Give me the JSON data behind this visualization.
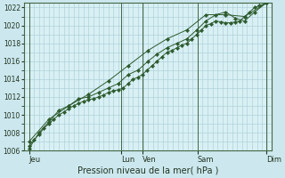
{
  "title": "",
  "xlabel": "Pression niveau de la mer( hPa )",
  "ylabel": "",
  "background_color": "#cce8ee",
  "plot_bg_color": "#d8f0f4",
  "grid_color": "#a8ccd4",
  "line_color": "#2d5a2d",
  "marker_color": "#2d5a2d",
  "ylim": [
    1006,
    1022.5
  ],
  "ytick_min": 1006,
  "ytick_max": 1022,
  "ytick_step": 2,
  "xlim_max": 300,
  "day_labels": [
    "Jeu",
    "Lun",
    "Ven",
    "Sam",
    "Dim"
  ],
  "day_positions": [
    6,
    118,
    143,
    210,
    293
  ],
  "series1_x": [
    6,
    12,
    18,
    24,
    30,
    36,
    42,
    48,
    54,
    60,
    66,
    72,
    78,
    84,
    90,
    96,
    102,
    108,
    114,
    120,
    126,
    132,
    138,
    143,
    149,
    155,
    161,
    167,
    173,
    179,
    185,
    191,
    197,
    203,
    209,
    215,
    220,
    226,
    232,
    238,
    244,
    250,
    256,
    261,
    267,
    273,
    279,
    285,
    293
  ],
  "series1_y": [
    1006.5,
    1007.2,
    1007.8,
    1008.5,
    1009.0,
    1009.5,
    1010.0,
    1010.3,
    1010.7,
    1011.0,
    1011.3,
    1011.5,
    1011.7,
    1011.8,
    1012.0,
    1012.2,
    1012.5,
    1012.7,
    1012.8,
    1013.0,
    1013.5,
    1014.0,
    1014.2,
    1014.5,
    1015.0,
    1015.5,
    1016.0,
    1016.5,
    1017.0,
    1017.2,
    1017.5,
    1017.8,
    1018.0,
    1018.5,
    1019.0,
    1019.5,
    1020.0,
    1020.2,
    1020.5,
    1020.4,
    1020.3,
    1020.3,
    1020.4,
    1020.5,
    1021.0,
    1021.5,
    1022.0,
    1022.2,
    1022.5
  ],
  "series2_x": [
    6,
    18,
    30,
    42,
    54,
    66,
    78,
    90,
    102,
    114,
    126,
    138,
    150,
    161,
    173,
    185,
    197,
    209,
    220,
    232,
    244,
    256,
    267,
    279,
    293
  ],
  "series2_y": [
    1006.2,
    1008.0,
    1009.2,
    1010.5,
    1011.0,
    1011.8,
    1012.0,
    1012.5,
    1013.0,
    1013.5,
    1014.5,
    1015.0,
    1016.0,
    1016.8,
    1017.5,
    1018.0,
    1018.5,
    1019.5,
    1020.5,
    1021.2,
    1021.5,
    1020.8,
    1020.5,
    1021.5,
    1022.5
  ],
  "series3_x": [
    6,
    30,
    54,
    78,
    102,
    126,
    150,
    173,
    197,
    220,
    244,
    267,
    293
  ],
  "series3_y": [
    1007.0,
    1009.5,
    1011.0,
    1012.3,
    1013.8,
    1015.5,
    1017.2,
    1018.5,
    1019.5,
    1021.2,
    1021.2,
    1021.0,
    1022.5
  ]
}
